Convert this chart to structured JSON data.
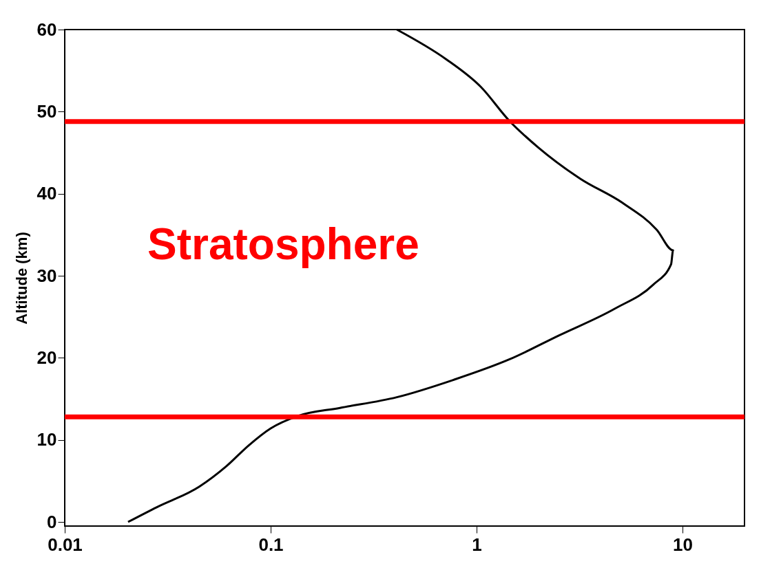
{
  "chart_data": {
    "type": "line",
    "ylabel": "Altitude (km)",
    "x": [
      0.0203,
      0.028,
      0.045,
      0.061,
      0.078,
      0.1,
      0.135,
      0.217,
      0.41,
      0.77,
      1.44,
      2.5,
      4.7,
      7.2,
      8.8,
      9.0,
      7.5,
      5.1,
      3.2,
      2.0,
      1.44,
      1.05,
      0.71,
      0.41
    ],
    "series": [
      {
        "color": "#000000",
        "values": [
          0,
          1.8,
          4.3,
          6.8,
          9.3,
          11.4,
          12.9,
          13.9,
          15.2,
          17.3,
          19.8,
          22.7,
          26,
          28.9,
          31.4,
          33.1,
          35.6,
          38.9,
          41.8,
          45.6,
          48.9,
          53,
          56.4,
          60
        ]
      }
    ],
    "log": "x",
    "xlim": [
      0.01,
      20
    ],
    "xticks": [
      0.01,
      0.1,
      1,
      10
    ],
    "ylim": [
      -0.5,
      60
    ],
    "yticks": [
      0,
      10,
      20,
      30,
      40,
      50,
      60
    ],
    "grid": false,
    "marker": "none",
    "line_style": "solid",
    "ref_lines": [
      {
        "axis": "y",
        "value": 48.8,
        "color": "#ff0000"
      },
      {
        "axis": "y",
        "value": 12.8,
        "color": "#ff0000"
      }
    ],
    "annotations": [
      "Stratosphere"
    ]
  }
}
